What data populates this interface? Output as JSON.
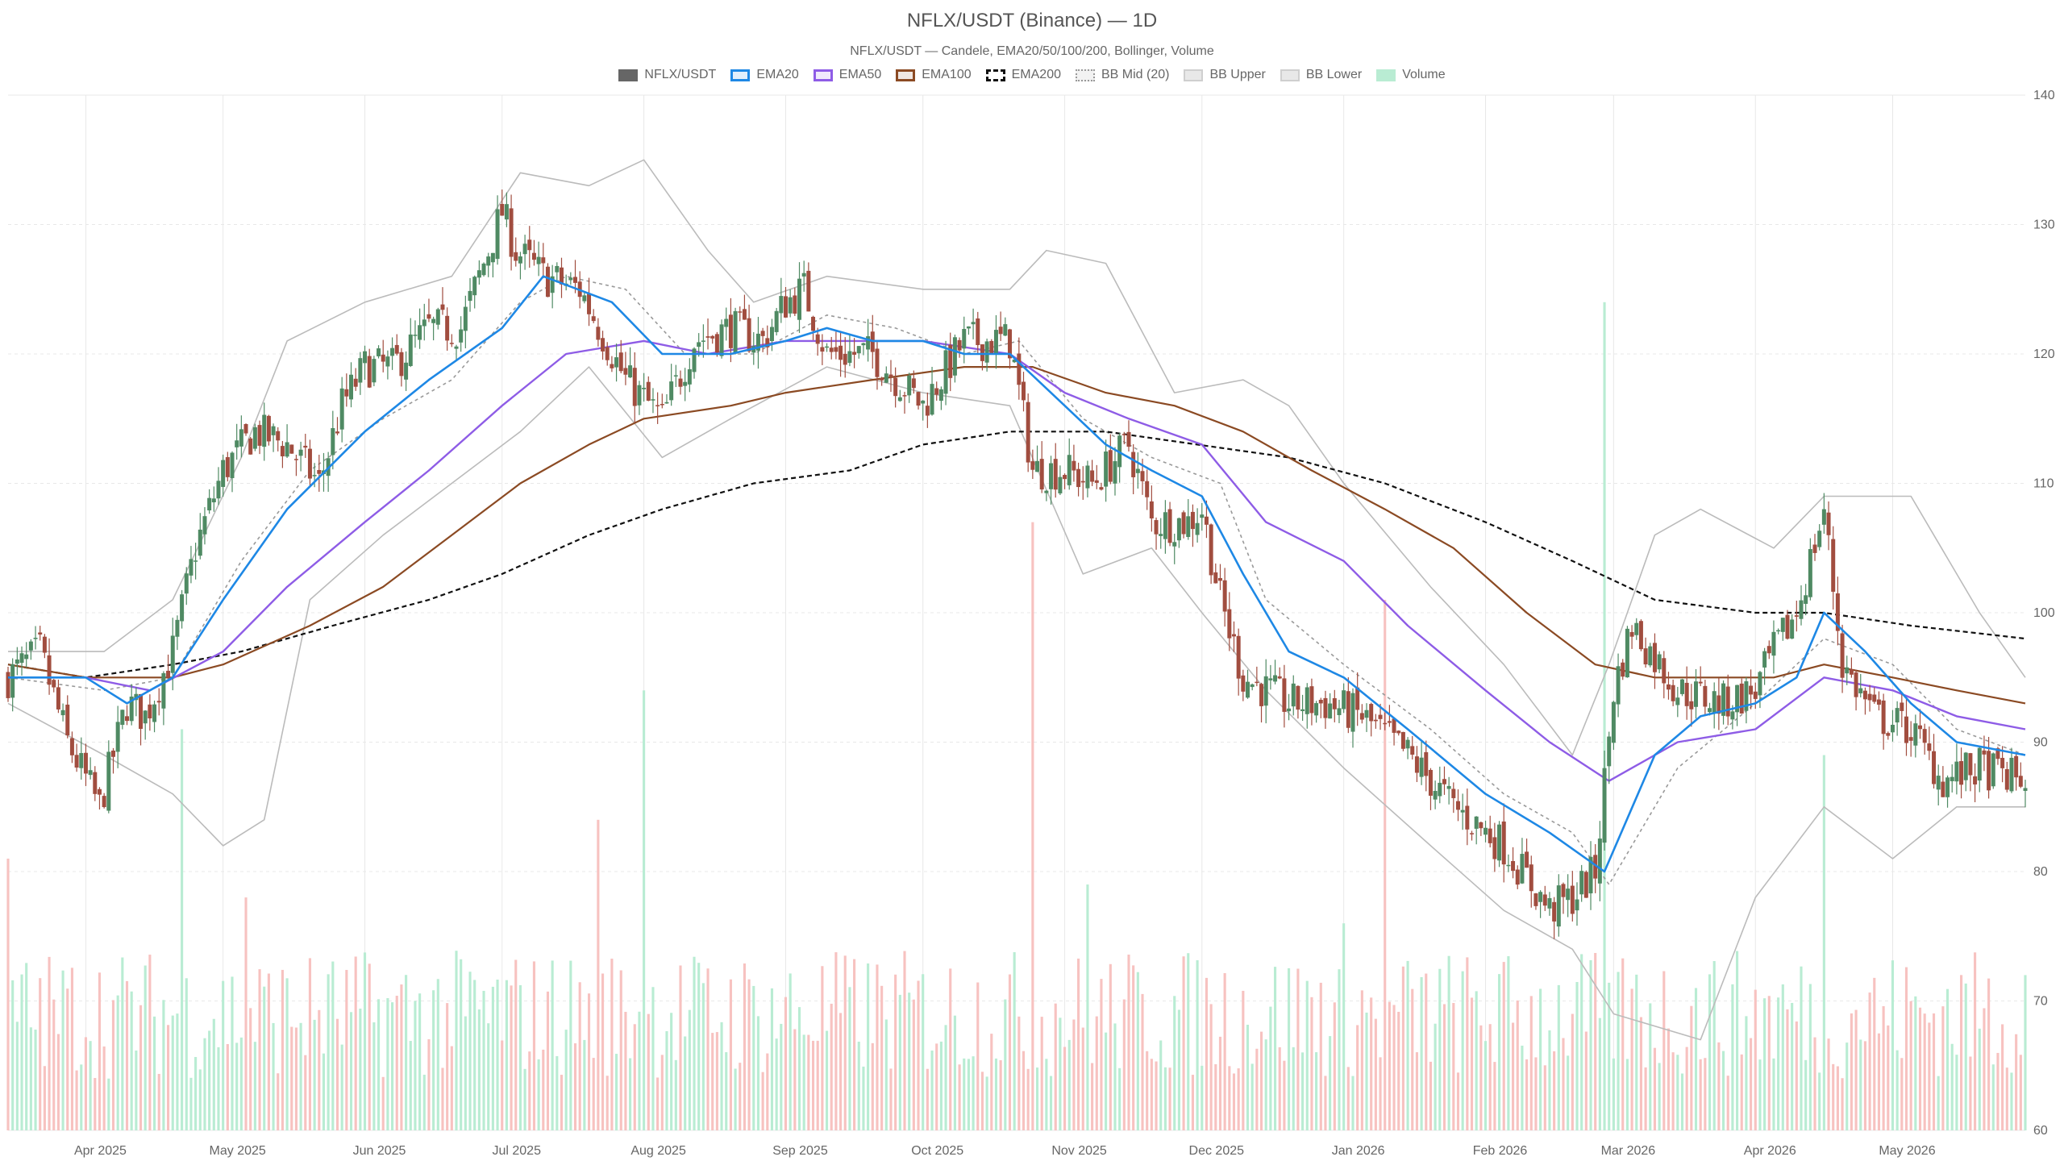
{
  "chart_data": {
    "type": "candlestick",
    "title": "NFLX/USDT (Binance) — 1D",
    "subtitle": "NFLX/USDT — Candele, EMA20/50/100/200, Bollinger, Volume",
    "legend_position": "top-center",
    "grid": true,
    "ylim": [
      60,
      140
    ],
    "y_ticks": [
      60,
      70,
      80,
      90,
      100,
      110,
      120,
      130,
      140
    ],
    "x_range": [
      "2025-03-15",
      "2026-05-30"
    ],
    "x_ticks": [
      {
        "date": "2025-04-01",
        "label": "Apr 2025"
      },
      {
        "date": "2025-05-01",
        "label": "May 2025"
      },
      {
        "date": "2025-06-01",
        "label": "Jun 2025"
      },
      {
        "date": "2025-07-01",
        "label": "Jul 2025"
      },
      {
        "date": "2025-08-01",
        "label": "Aug 2025"
      },
      {
        "date": "2025-09-01",
        "label": "Sep 2025"
      },
      {
        "date": "2025-10-01",
        "label": "Oct 2025"
      },
      {
        "date": "2025-11-01",
        "label": "Nov 2025"
      },
      {
        "date": "2025-12-01",
        "label": "Dec 2025"
      },
      {
        "date": "2026-01-01",
        "label": "Jan 2026"
      },
      {
        "date": "2026-02-01",
        "label": "Feb 2026"
      },
      {
        "date": "2026-03-01",
        "label": "Mar 2026"
      },
      {
        "date": "2026-04-01",
        "label": "Apr 2026"
      },
      {
        "date": "2026-05-01",
        "label": "May 2026"
      }
    ],
    "legend": [
      {
        "label": "NFLX/USDT",
        "color": "#666666",
        "style": "solid-fill"
      },
      {
        "label": "EMA20",
        "color": "#1e88e5",
        "style": "line"
      },
      {
        "label": "EMA50",
        "color": "#8e5ce6",
        "style": "line"
      },
      {
        "label": "EMA100",
        "color": "#8b4a23",
        "style": "line"
      },
      {
        "label": "EMA200",
        "color": "#111111",
        "style": "dashed"
      },
      {
        "label": "BB Mid (20)",
        "color": "#999999",
        "style": "dotted"
      },
      {
        "label": "BB Upper",
        "color": "#bbbbbb",
        "style": "line"
      },
      {
        "label": "BB Lower",
        "color": "#bbbbbb",
        "style": "line"
      },
      {
        "label": "Volume",
        "color": "#b9ecd3",
        "style": "fill"
      }
    ],
    "colors": {
      "up": "#4f8a63",
      "down": "#a14d3f",
      "volume_up": "#b9ecd3",
      "volume_down": "#f7c2c0",
      "ema20": "#1e88e5",
      "ema50": "#8e5ce6",
      "ema100": "#8b4a23",
      "ema200": "#111111",
      "bb_mid": "#999999",
      "bb_band": "#bbbbbb",
      "grid": "#e8e8e8"
    },
    "price_path": [
      [
        "2025-03-15",
        95
      ],
      [
        "2025-03-22",
        97
      ],
      [
        "2025-03-28",
        90
      ],
      [
        "2025-04-04",
        85
      ],
      [
        "2025-04-10",
        93
      ],
      [
        "2025-04-14",
        92
      ],
      [
        "2025-04-20",
        97
      ],
      [
        "2025-04-25",
        105
      ],
      [
        "2025-05-01",
        111
      ],
      [
        "2025-05-08",
        114
      ],
      [
        "2025-05-15",
        113
      ],
      [
        "2025-05-22",
        110
      ],
      [
        "2025-05-27",
        116
      ],
      [
        "2025-06-01",
        119
      ],
      [
        "2025-06-07",
        119
      ],
      [
        "2025-06-15",
        122
      ],
      [
        "2025-06-22",
        122
      ],
      [
        "2025-07-01",
        131
      ],
      [
        "2025-07-04",
        128
      ],
      [
        "2025-07-10",
        126
      ],
      [
        "2025-07-18",
        125
      ],
      [
        "2025-07-28",
        118
      ],
      [
        "2025-08-05",
        115
      ],
      [
        "2025-08-12",
        121
      ],
      [
        "2025-08-20",
        122
      ],
      [
        "2025-08-27",
        121
      ],
      [
        "2025-09-01",
        124
      ],
      [
        "2025-09-05",
        125
      ],
      [
        "2025-09-10",
        120
      ],
      [
        "2025-09-20",
        120
      ],
      [
        "2025-10-01",
        116
      ],
      [
        "2025-10-10",
        121
      ],
      [
        "2025-10-20",
        121
      ],
      [
        "2025-10-25",
        111
      ],
      [
        "2025-11-01",
        111
      ],
      [
        "2025-11-07",
        110
      ],
      [
        "2025-11-15",
        113
      ],
      [
        "2025-11-20",
        107
      ],
      [
        "2025-11-28",
        107
      ],
      [
        "2025-12-01",
        108
      ],
      [
        "2025-12-05",
        101
      ],
      [
        "2025-12-10",
        95
      ],
      [
        "2025-12-20",
        93
      ],
      [
        "2025-12-28",
        93
      ],
      [
        "2026-01-05",
        92
      ],
      [
        "2026-01-15",
        89
      ],
      [
        "2026-01-25",
        85
      ],
      [
        "2026-02-05",
        82
      ],
      [
        "2026-02-15",
        77
      ],
      [
        "2026-02-20",
        78
      ],
      [
        "2026-02-25",
        80
      ],
      [
        "2026-03-01",
        94
      ],
      [
        "2026-03-05",
        99
      ],
      [
        "2026-03-15",
        94
      ],
      [
        "2026-03-25",
        93
      ],
      [
        "2026-04-01",
        94
      ],
      [
        "2026-04-05",
        97
      ],
      [
        "2026-04-10",
        100
      ],
      [
        "2026-04-16",
        108
      ],
      [
        "2026-04-20",
        96
      ],
      [
        "2026-04-27",
        92
      ],
      [
        "2026-05-05",
        91
      ],
      [
        "2026-05-12",
        87
      ],
      [
        "2026-05-20",
        88
      ],
      [
        "2026-05-30",
        87
      ]
    ],
    "ema20": [
      [
        "2025-03-15",
        95
      ],
      [
        "2025-04-01",
        95
      ],
      [
        "2025-04-10",
        93
      ],
      [
        "2025-04-20",
        95
      ],
      [
        "2025-05-01",
        101
      ],
      [
        "2025-05-15",
        108
      ],
      [
        "2025-06-01",
        114
      ],
      [
        "2025-06-15",
        118
      ],
      [
        "2025-07-01",
        122
      ],
      [
        "2025-07-10",
        126
      ],
      [
        "2025-07-25",
        124
      ],
      [
        "2025-08-05",
        120
      ],
      [
        "2025-08-20",
        120
      ],
      [
        "2025-09-01",
        121
      ],
      [
        "2025-09-10",
        122
      ],
      [
        "2025-09-20",
        121
      ],
      [
        "2025-10-01",
        121
      ],
      [
        "2025-10-10",
        120
      ],
      [
        "2025-10-20",
        120
      ],
      [
        "2025-11-01",
        116
      ],
      [
        "2025-11-10",
        113
      ],
      [
        "2025-11-20",
        111
      ],
      [
        "2025-12-01",
        109
      ],
      [
        "2025-12-10",
        103
      ],
      [
        "2025-12-20",
        97
      ],
      [
        "2026-01-01",
        95
      ],
      [
        "2026-01-15",
        91
      ],
      [
        "2026-02-01",
        86
      ],
      [
        "2026-02-15",
        83
      ],
      [
        "2026-02-27",
        80
      ],
      [
        "2026-03-10",
        89
      ],
      [
        "2026-03-20",
        92
      ],
      [
        "2026-04-01",
        93
      ],
      [
        "2026-04-10",
        95
      ],
      [
        "2026-04-16",
        100
      ],
      [
        "2026-04-25",
        97
      ],
      [
        "2026-05-05",
        93
      ],
      [
        "2026-05-15",
        90
      ],
      [
        "2026-05-30",
        89
      ]
    ],
    "ema50": [
      [
        "2025-03-15",
        95
      ],
      [
        "2025-04-01",
        95
      ],
      [
        "2025-04-15",
        94
      ],
      [
        "2025-05-01",
        97
      ],
      [
        "2025-05-15",
        102
      ],
      [
        "2025-06-01",
        107
      ],
      [
        "2025-06-15",
        111
      ],
      [
        "2025-07-01",
        116
      ],
      [
        "2025-07-15",
        120
      ],
      [
        "2025-08-01",
        121
      ],
      [
        "2025-08-15",
        120
      ],
      [
        "2025-09-01",
        121
      ],
      [
        "2025-09-15",
        121
      ],
      [
        "2025-10-01",
        121
      ],
      [
        "2025-10-20",
        120
      ],
      [
        "2025-11-01",
        117
      ],
      [
        "2025-11-15",
        115
      ],
      [
        "2025-12-01",
        113
      ],
      [
        "2025-12-15",
        107
      ],
      [
        "2026-01-01",
        104
      ],
      [
        "2026-01-15",
        99
      ],
      [
        "2026-02-01",
        94
      ],
      [
        "2026-02-15",
        90
      ],
      [
        "2026-02-28",
        87
      ],
      [
        "2026-03-15",
        90
      ],
      [
        "2026-04-01",
        91
      ],
      [
        "2026-04-16",
        95
      ],
      [
        "2026-05-01",
        94
      ],
      [
        "2026-05-15",
        92
      ],
      [
        "2026-05-30",
        91
      ]
    ],
    "ema100": [
      [
        "2025-03-15",
        96
      ],
      [
        "2025-04-01",
        95
      ],
      [
        "2025-04-20",
        95
      ],
      [
        "2025-05-01",
        96
      ],
      [
        "2025-05-20",
        99
      ],
      [
        "2025-06-05",
        102
      ],
      [
        "2025-06-20",
        106
      ],
      [
        "2025-07-05",
        110
      ],
      [
        "2025-07-20",
        113
      ],
      [
        "2025-08-01",
        115
      ],
      [
        "2025-08-20",
        116
      ],
      [
        "2025-09-01",
        117
      ],
      [
        "2025-09-20",
        118
      ],
      [
        "2025-10-10",
        119
      ],
      [
        "2025-10-25",
        119
      ],
      [
        "2025-11-10",
        117
      ],
      [
        "2025-11-25",
        116
      ],
      [
        "2025-12-10",
        114
      ],
      [
        "2025-12-25",
        111
      ],
      [
        "2026-01-10",
        108
      ],
      [
        "2026-01-25",
        105
      ],
      [
        "2026-02-10",
        100
      ],
      [
        "2026-02-25",
        96
      ],
      [
        "2026-03-10",
        95
      ],
      [
        "2026-03-25",
        95
      ],
      [
        "2026-04-05",
        95
      ],
      [
        "2026-04-16",
        96
      ],
      [
        "2026-05-01",
        95
      ],
      [
        "2026-05-15",
        94
      ],
      [
        "2026-05-30",
        93
      ]
    ],
    "ema200": [
      [
        "2025-03-15",
        96
      ],
      [
        "2025-04-01",
        95
      ],
      [
        "2025-04-20",
        96
      ],
      [
        "2025-05-05",
        97
      ],
      [
        "2025-05-25",
        99
      ],
      [
        "2025-06-15",
        101
      ],
      [
        "2025-07-01",
        103
      ],
      [
        "2025-07-20",
        106
      ],
      [
        "2025-08-05",
        108
      ],
      [
        "2025-08-25",
        110
      ],
      [
        "2025-09-15",
        111
      ],
      [
        "2025-10-01",
        113
      ],
      [
        "2025-10-20",
        114
      ],
      [
        "2025-11-10",
        114
      ],
      [
        "2025-11-30",
        113
      ],
      [
        "2025-12-20",
        112
      ],
      [
        "2026-01-10",
        110
      ],
      [
        "2026-02-01",
        107
      ],
      [
        "2026-02-20",
        104
      ],
      [
        "2026-03-10",
        101
      ],
      [
        "2026-04-01",
        100
      ],
      [
        "2026-04-16",
        100
      ],
      [
        "2026-05-05",
        99
      ],
      [
        "2026-05-30",
        98
      ]
    ],
    "bb_mid": [
      [
        "2025-03-15",
        95
      ],
      [
        "2025-04-05",
        94
      ],
      [
        "2025-04-20",
        95
      ],
      [
        "2025-05-05",
        104
      ],
      [
        "2025-05-20",
        111
      ],
      [
        "2025-06-05",
        115
      ],
      [
        "2025-06-20",
        118
      ],
      [
        "2025-07-05",
        124
      ],
      [
        "2025-07-15",
        126
      ],
      [
        "2025-07-28",
        125
      ],
      [
        "2025-08-10",
        120
      ],
      [
        "2025-08-25",
        120
      ],
      [
        "2025-09-10",
        123
      ],
      [
        "2025-09-25",
        122
      ],
      [
        "2025-10-10",
        120
      ],
      [
        "2025-10-22",
        121
      ],
      [
        "2025-11-05",
        115
      ],
      [
        "2025-11-20",
        112
      ],
      [
        "2025-12-05",
        110
      ],
      [
        "2025-12-15",
        101
      ],
      [
        "2026-01-01",
        96
      ],
      [
        "2026-01-20",
        91
      ],
      [
        "2026-02-05",
        86
      ],
      [
        "2026-02-20",
        83
      ],
      [
        "2026-02-28",
        79
      ],
      [
        "2026-03-15",
        88
      ],
      [
        "2026-04-01",
        93
      ],
      [
        "2026-04-16",
        98
      ],
      [
        "2026-05-01",
        96
      ],
      [
        "2026-05-15",
        91
      ],
      [
        "2026-05-30",
        89
      ]
    ],
    "bb_upper": [
      [
        "2025-03-15",
        97
      ],
      [
        "2025-04-05",
        97
      ],
      [
        "2025-04-20",
        101
      ],
      [
        "2025-05-05",
        112
      ],
      [
        "2025-05-15",
        121
      ],
      [
        "2025-06-01",
        124
      ],
      [
        "2025-06-20",
        126
      ],
      [
        "2025-07-05",
        134
      ],
      [
        "2025-07-20",
        133
      ],
      [
        "2025-08-01",
        135
      ],
      [
        "2025-08-15",
        128
      ],
      [
        "2025-08-25",
        124
      ],
      [
        "2025-09-10",
        126
      ],
      [
        "2025-10-01",
        125
      ],
      [
        "2025-10-20",
        125
      ],
      [
        "2025-10-28",
        128
      ],
      [
        "2025-11-10",
        127
      ],
      [
        "2025-11-25",
        117
      ],
      [
        "2025-12-10",
        118
      ],
      [
        "2025-12-20",
        116
      ],
      [
        "2026-01-01",
        110
      ],
      [
        "2026-01-20",
        102
      ],
      [
        "2026-02-05",
        96
      ],
      [
        "2026-02-20",
        89
      ],
      [
        "2026-02-28",
        96
      ],
      [
        "2026-03-10",
        106
      ],
      [
        "2026-03-20",
        108
      ],
      [
        "2026-04-05",
        105
      ],
      [
        "2026-04-16",
        109
      ],
      [
        "2026-05-05",
        109
      ],
      [
        "2026-05-20",
        100
      ],
      [
        "2026-05-30",
        95
      ]
    ],
    "bb_lower": [
      [
        "2025-03-15",
        93
      ],
      [
        "2025-04-05",
        89
      ],
      [
        "2025-04-20",
        86
      ],
      [
        "2025-05-01",
        82
      ],
      [
        "2025-05-10",
        84
      ],
      [
        "2025-05-20",
        101
      ],
      [
        "2025-06-05",
        106
      ],
      [
        "2025-06-20",
        110
      ],
      [
        "2025-07-05",
        114
      ],
      [
        "2025-07-20",
        119
      ],
      [
        "2025-08-05",
        112
      ],
      [
        "2025-08-20",
        115
      ],
      [
        "2025-09-10",
        119
      ],
      [
        "2025-10-01",
        117
      ],
      [
        "2025-10-20",
        116
      ],
      [
        "2025-11-05",
        103
      ],
      [
        "2025-11-20",
        105
      ],
      [
        "2025-12-01",
        100
      ],
      [
        "2025-12-15",
        94
      ],
      [
        "2026-01-01",
        88
      ],
      [
        "2026-01-20",
        82
      ],
      [
        "2026-02-05",
        77
      ],
      [
        "2026-02-20",
        74
      ],
      [
        "2026-03-01",
        69
      ],
      [
        "2026-03-20",
        67
      ],
      [
        "2026-04-01",
        78
      ],
      [
        "2026-04-16",
        85
      ],
      [
        "2026-05-01",
        81
      ],
      [
        "2026-05-15",
        85
      ],
      [
        "2026-05-30",
        85
      ]
    ],
    "volume_spikes": [
      {
        "date": "2025-03-15",
        "value": 81
      },
      {
        "date": "2025-04-22",
        "value": 91
      },
      {
        "date": "2025-05-06",
        "value": 78
      },
      {
        "date": "2025-07-22",
        "value": 84
      },
      {
        "date": "2025-08-01",
        "value": 94
      },
      {
        "date": "2025-10-25",
        "value": 107
      },
      {
        "date": "2025-11-06",
        "value": 79
      },
      {
        "date": "2026-01-01",
        "value": 76
      },
      {
        "date": "2026-01-10",
        "value": 101
      },
      {
        "date": "2026-02-27",
        "value": 124
      },
      {
        "date": "2026-04-16",
        "value": 89
      },
      {
        "date": "2026-05-30",
        "value": 72
      }
    ]
  }
}
